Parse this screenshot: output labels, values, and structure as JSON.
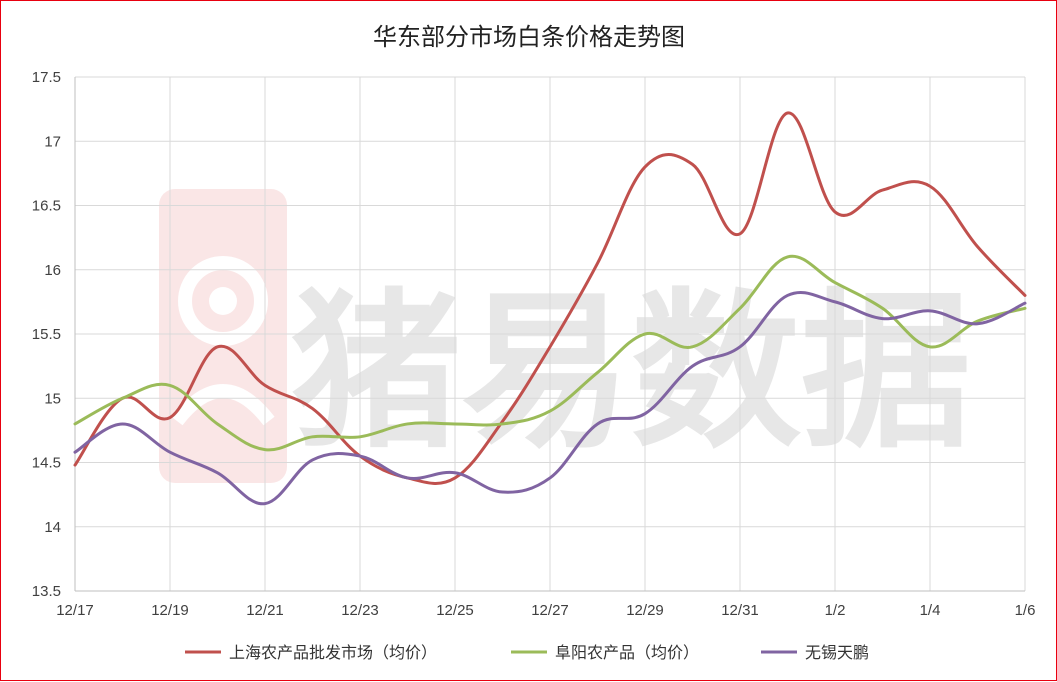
{
  "chart_data": {
    "type": "line",
    "title": "华东部分市场白条价格走势图",
    "watermark": "猪易数据",
    "x": [
      "12/17",
      "12/18",
      "12/19",
      "12/20",
      "12/21",
      "12/22",
      "12/23",
      "12/24",
      "12/25",
      "12/26",
      "12/27",
      "12/28",
      "12/29",
      "12/30",
      "12/31",
      "1/1",
      "1/2",
      "1/3",
      "1/4",
      "1/5",
      "1/6"
    ],
    "x_tick_labels": [
      "12/17",
      "12/19",
      "12/21",
      "12/23",
      "12/25",
      "12/27",
      "12/29",
      "12/31",
      "1/2",
      "1/4",
      "1/6"
    ],
    "ylim": [
      13.5,
      17.5
    ],
    "y_ticks": [
      "13.5",
      "14",
      "14.5",
      "15",
      "15.5",
      "16",
      "16.5",
      "17",
      "17.5"
    ],
    "grid": true,
    "legend_position": "bottom",
    "series": [
      {
        "name": "上海农产品批发市场（均价）",
        "color": "#c0504d",
        "values": [
          14.48,
          15.0,
          14.85,
          15.4,
          15.1,
          14.92,
          14.55,
          14.38,
          14.38,
          14.82,
          15.4,
          16.05,
          16.8,
          16.82,
          16.28,
          17.22,
          16.45,
          16.62,
          16.65,
          16.18,
          15.8
        ]
      },
      {
        "name": "阜阳农产品（均价）",
        "color": "#9bbb59",
        "values": [
          14.8,
          15.0,
          15.1,
          14.8,
          14.6,
          14.7,
          14.7,
          14.8,
          14.8,
          14.8,
          14.9,
          15.2,
          15.5,
          15.4,
          15.7,
          16.1,
          15.9,
          15.7,
          15.4,
          15.6,
          15.7
        ]
      },
      {
        "name": "无锡天鹏",
        "color": "#8064a2",
        "values": [
          14.58,
          14.8,
          14.58,
          14.42,
          14.18,
          14.52,
          14.55,
          14.38,
          14.42,
          14.27,
          14.38,
          14.8,
          14.88,
          15.25,
          15.4,
          15.8,
          15.75,
          15.62,
          15.68,
          15.58,
          15.74
        ]
      }
    ]
  }
}
